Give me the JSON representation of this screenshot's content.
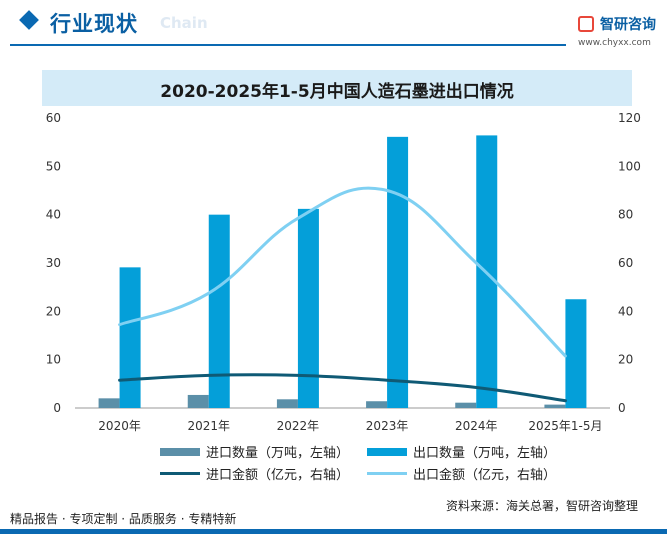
{
  "header": {
    "section_title": "行业现状",
    "ghost_text": "Chain",
    "logo_name": "智研咨询",
    "logo_url": "www.chyxx.com"
  },
  "footer": {
    "tagline": "精品报告 · 专项定制 · 品质服务 · 专精特新",
    "source": "资料来源：海关总署，智研咨询整理"
  },
  "colors": {
    "import_qty": "#5b8fa8",
    "export_qty": "#049fd9",
    "import_amt": "#0f5a75",
    "export_amt": "#7fd0f2",
    "brand": "#0a69b2"
  },
  "chart_data": {
    "type": "bar",
    "title": "2020-2025年1-5月中国人造石墨进出口情况",
    "categories": [
      "2020年",
      "2021年",
      "2022年",
      "2023年",
      "2024年",
      "2025年1-5月"
    ],
    "y_left": {
      "min": 0,
      "max": 60,
      "ticks": [
        0,
        10,
        20,
        30,
        40,
        50,
        60
      ]
    },
    "y_right": {
      "min": 0,
      "max": 120,
      "ticks": [
        0,
        20,
        40,
        60,
        80,
        100,
        120
      ]
    },
    "series": [
      {
        "name": "进口数量（万吨，左轴）",
        "type": "bar",
        "axis": "left",
        "values": [
          2.0,
          2.7,
          1.8,
          1.4,
          1.1,
          0.7
        ]
      },
      {
        "name": "出口数量（万吨，左轴）",
        "type": "bar",
        "axis": "left",
        "values": [
          29.1,
          40.0,
          41.2,
          56.1,
          56.4,
          22.5
        ]
      },
      {
        "name": "进口金额（亿元，右轴）",
        "type": "line",
        "axis": "right",
        "values": [
          11.5,
          13.5,
          13.5,
          11.5,
          8.5,
          3.0
        ]
      },
      {
        "name": "出口金额（亿元，右轴）",
        "type": "line",
        "axis": "right",
        "values": [
          34.5,
          47.5,
          78.5,
          90.0,
          60.0,
          21.5
        ]
      }
    ],
    "grid": false,
    "legend_position": "bottom"
  }
}
